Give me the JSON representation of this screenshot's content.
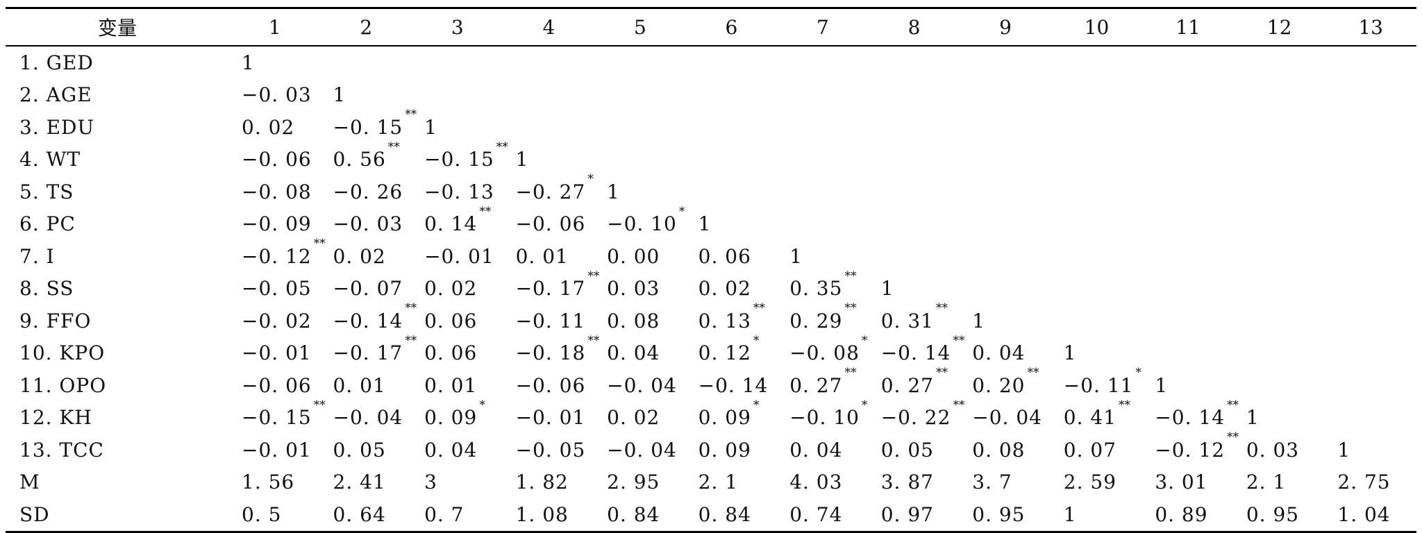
{
  "table": {
    "header": {
      "variable": "变量",
      "columns": [
        "1",
        "2",
        "3",
        "4",
        "5",
        "6",
        "7",
        "8",
        "9",
        "10",
        "11",
        "12",
        "13"
      ]
    },
    "rows": [
      {
        "label": "1. GED",
        "cells": [
          [
            "1",
            ""
          ]
        ]
      },
      {
        "label": "2. AGE",
        "cells": [
          [
            "−0. 03",
            ""
          ],
          [
            "1",
            ""
          ]
        ]
      },
      {
        "label": "3. EDU",
        "cells": [
          [
            "0. 02",
            ""
          ],
          [
            "−0. 15",
            "**"
          ],
          [
            "1",
            ""
          ]
        ]
      },
      {
        "label": "4. WT",
        "cells": [
          [
            "−0. 06",
            ""
          ],
          [
            "0. 56",
            "**"
          ],
          [
            "−0. 15",
            "**"
          ],
          [
            "1",
            ""
          ]
        ]
      },
      {
        "label": "5. TS",
        "cells": [
          [
            "−0. 08",
            ""
          ],
          [
            "−0. 26",
            ""
          ],
          [
            "−0. 13",
            ""
          ],
          [
            "−0. 27",
            "*"
          ],
          [
            "1",
            ""
          ]
        ]
      },
      {
        "label": "6. PC",
        "cells": [
          [
            "−0. 09",
            ""
          ],
          [
            "−0. 03",
            ""
          ],
          [
            "0. 14",
            "**"
          ],
          [
            "−0. 06",
            ""
          ],
          [
            "−0. 10",
            "*"
          ],
          [
            "1",
            ""
          ]
        ]
      },
      {
        "label": "7. I",
        "cells": [
          [
            "−0. 12",
            "**"
          ],
          [
            "0. 02",
            ""
          ],
          [
            "−0. 01",
            ""
          ],
          [
            "0. 01",
            ""
          ],
          [
            "0. 00",
            ""
          ],
          [
            "0. 06",
            ""
          ],
          [
            "1",
            ""
          ]
        ]
      },
      {
        "label": "8. SS",
        "cells": [
          [
            "−0. 05",
            ""
          ],
          [
            "−0. 07",
            ""
          ],
          [
            "0. 02",
            ""
          ],
          [
            "−0. 17",
            "**"
          ],
          [
            "0. 03",
            ""
          ],
          [
            "0. 02",
            ""
          ],
          [
            "0. 35",
            "**"
          ],
          [
            "1",
            ""
          ]
        ]
      },
      {
        "label": "9. FFO",
        "cells": [
          [
            "−0. 02",
            ""
          ],
          [
            "−0. 14",
            "**"
          ],
          [
            "0. 06",
            ""
          ],
          [
            "−0. 11",
            ""
          ],
          [
            "0. 08",
            ""
          ],
          [
            "0. 13",
            "**"
          ],
          [
            "0. 29",
            "**"
          ],
          [
            "0. 31",
            "**"
          ],
          [
            "1",
            ""
          ]
        ]
      },
      {
        "label": "10. KPO",
        "cells": [
          [
            "−0. 01",
            ""
          ],
          [
            "−0. 17",
            "**"
          ],
          [
            "0. 06",
            ""
          ],
          [
            "−0. 18",
            "**"
          ],
          [
            "0. 04",
            ""
          ],
          [
            "0. 12",
            "*"
          ],
          [
            "−0. 08",
            "*"
          ],
          [
            "−0. 14",
            "**"
          ],
          [
            "0. 04",
            ""
          ],
          [
            "1",
            ""
          ]
        ]
      },
      {
        "label": "11. OPO",
        "cells": [
          [
            "−0. 06",
            ""
          ],
          [
            "0. 01",
            ""
          ],
          [
            "0. 01",
            ""
          ],
          [
            "−0. 06",
            ""
          ],
          [
            "−0. 04",
            ""
          ],
          [
            "−0. 14",
            ""
          ],
          [
            "0. 27",
            "**"
          ],
          [
            "0. 27",
            "**"
          ],
          [
            "0. 20",
            "**"
          ],
          [
            "−0. 11",
            "*"
          ],
          [
            "1",
            ""
          ]
        ]
      },
      {
        "label": "12. KH",
        "cells": [
          [
            "−0. 15",
            "**"
          ],
          [
            "−0. 04",
            ""
          ],
          [
            "0. 09",
            "*"
          ],
          [
            "−0. 01",
            ""
          ],
          [
            "0. 02",
            ""
          ],
          [
            "0. 09",
            "*"
          ],
          [
            "−0. 10",
            "*"
          ],
          [
            "−0. 22",
            "**"
          ],
          [
            "−0. 04",
            ""
          ],
          [
            "0. 41",
            "**"
          ],
          [
            "−0. 14",
            "**"
          ],
          [
            "1",
            ""
          ]
        ]
      },
      {
        "label": "13. TCC",
        "cells": [
          [
            "−0. 01",
            ""
          ],
          [
            "0. 05",
            ""
          ],
          [
            "0. 04",
            ""
          ],
          [
            "−0. 05",
            ""
          ],
          [
            "−0. 04",
            ""
          ],
          [
            "0. 09",
            ""
          ],
          [
            "0. 04",
            ""
          ],
          [
            "0. 05",
            ""
          ],
          [
            "0. 08",
            ""
          ],
          [
            "0. 07",
            ""
          ],
          [
            "−0. 12",
            "**"
          ],
          [
            "0. 03",
            ""
          ],
          [
            "1",
            ""
          ]
        ]
      },
      {
        "label": "M",
        "cells": [
          [
            "1. 56",
            ""
          ],
          [
            "2. 41",
            ""
          ],
          [
            "3",
            ""
          ],
          [
            "1. 82",
            ""
          ],
          [
            "2. 95",
            ""
          ],
          [
            "2. 1",
            ""
          ],
          [
            "4. 03",
            ""
          ],
          [
            "3. 87",
            ""
          ],
          [
            "3. 7",
            ""
          ],
          [
            "2. 59",
            ""
          ],
          [
            "3. 01",
            ""
          ],
          [
            "2. 1",
            ""
          ],
          [
            "2. 75",
            ""
          ]
        ]
      },
      {
        "label": "SD",
        "cells": [
          [
            "0. 5",
            ""
          ],
          [
            "0. 64",
            ""
          ],
          [
            "0. 7",
            ""
          ],
          [
            "1. 08",
            ""
          ],
          [
            "0. 84",
            ""
          ],
          [
            "0. 84",
            ""
          ],
          [
            "0. 74",
            ""
          ],
          [
            "0. 97",
            ""
          ],
          [
            "0. 95",
            ""
          ],
          [
            "1",
            ""
          ],
          [
            "0. 89",
            ""
          ],
          [
            "0. 95",
            ""
          ],
          [
            "1. 04",
            ""
          ]
        ]
      }
    ]
  }
}
